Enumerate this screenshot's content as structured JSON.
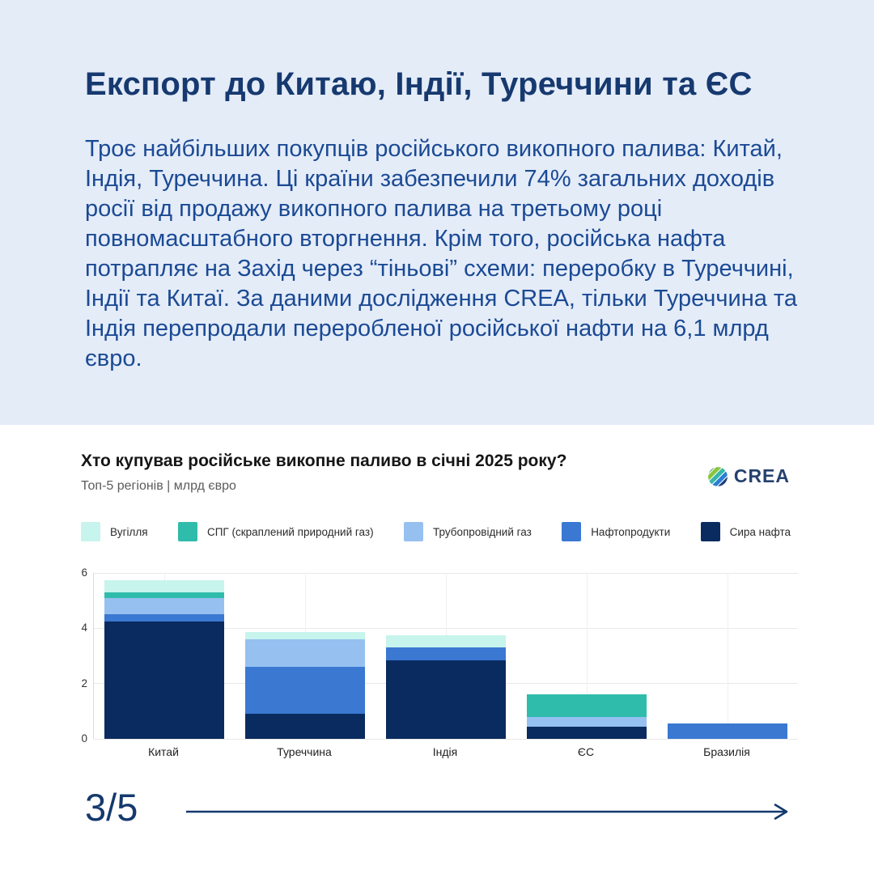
{
  "palette": {
    "hero_background": "#e4ecf8",
    "heading_color": "#16396f",
    "body_text_color": "#1b4a94",
    "accent_navy": "#15396e",
    "card_background": "#ffffff"
  },
  "header": {
    "title": "Експорт до Китаю, Індії, Туреччини та ЄС",
    "body": "Троє найбільших покупців російського викопного палива: Китай, Індія, Туреччина. Ці країни забезпечили 74% загальних доходів росії від продажу викопного палива на третьому році повномасштабного вторгнення. Крім того, російська нафта потрапляє на Захід через “тіньові” схеми: переробку в Туреччині, Індії та Китаї. За даними дослідження CREA, тільки Туреччина та Індія перепродали переробленої російської нафти на 6,1 млрд євро.",
    "stat_share": "74%",
    "stat_resold": "6,1 млрд євро"
  },
  "chart": {
    "title": "Хто купував російське викопне паливо в січні 2025 року?",
    "subtitle": "Топ-5 регіонів | млрд євро",
    "brand": "CREA",
    "icons": {
      "brand_icon": "crea-striped-globe-icon",
      "footer_arrow": "arrow-right-icon"
    }
  },
  "chart_data": {
    "type": "bar",
    "stacked": true,
    "title": "Хто купував російське викопне паливо в січні 2025 року?",
    "subtitle": "Топ-5 регіонів | млрд євро",
    "unit": "млрд євро",
    "categories": [
      "Китай",
      "Туреччина",
      "Індія",
      "ЄС",
      "Бразилія"
    ],
    "series": [
      {
        "name": "Сира нафта",
        "color": "#0a2b5f",
        "values": [
          4.25,
          0.9,
          2.85,
          0.45,
          0
        ]
      },
      {
        "name": "Нафтопродукти",
        "color": "#3a78d2",
        "values": [
          0.25,
          1.7,
          0.45,
          0,
          0.55
        ]
      },
      {
        "name": "Трубопровідний газ",
        "color": "#96c0f0",
        "values": [
          0.6,
          1.0,
          0,
          0.35,
          0
        ]
      },
      {
        "name": "СПГ (скраплений природний газ)",
        "color": "#2fbcab",
        "values": [
          0.2,
          0,
          0,
          0.8,
          0
        ]
      },
      {
        "name": "Вугілля",
        "color": "#c7f4ed",
        "values": [
          0.45,
          0.25,
          0.45,
          0,
          0
        ]
      }
    ],
    "totals": [
      5.75,
      3.85,
      3.75,
      1.6,
      0.55
    ],
    "ylim": [
      0,
      6
    ],
    "yticks": [
      0,
      2,
      4,
      6
    ],
    "grid": true,
    "legend_position": "top",
    "legend_order": [
      "Вугілля",
      "СПГ (скраплений природний газ)",
      "Трубопровідний газ",
      "Нафтопродукти",
      "Сира нафта"
    ]
  },
  "footer": {
    "page_indicator": "3/5"
  }
}
